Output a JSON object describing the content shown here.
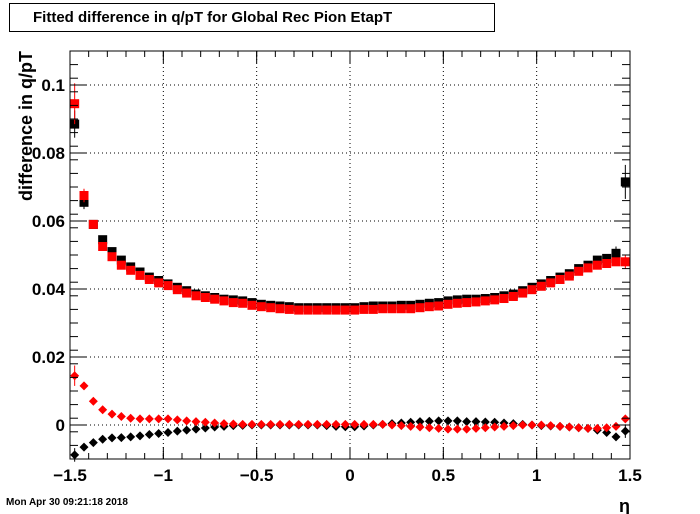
{
  "title": "Fitted difference in q/pT for Global Rec Pion EtapT",
  "timestamp": "Mon Apr 30 09:21:18 2018",
  "colors": {
    "black": "#000000",
    "red": "#ff0000",
    "grid": "#000000"
  },
  "chart_data": {
    "type": "scatter",
    "xlabel": "η",
    "ylabel": "difference in q/pT",
    "xlim": [
      -1.5,
      1.5
    ],
    "ylim": [
      -0.01,
      0.11
    ],
    "grid": true,
    "x_ticks": [
      {
        "v": -1.5,
        "label": "−1.5"
      },
      {
        "v": -1,
        "label": "−1"
      },
      {
        "v": -0.5,
        "label": "−0.5"
      },
      {
        "v": 0,
        "label": "0"
      },
      {
        "v": 0.5,
        "label": "0.5"
      },
      {
        "v": 1,
        "label": "1"
      },
      {
        "v": 1.5,
        "label": "1.5"
      }
    ],
    "y_ticks": [
      {
        "v": 0,
        "label": "0"
      },
      {
        "v": 0.02,
        "label": "0.02"
      },
      {
        "v": 0.04,
        "label": "0.04"
      },
      {
        "v": 0.06,
        "label": "0.06"
      },
      {
        "v": 0.08,
        "label": "0.08"
      },
      {
        "v": 0.1,
        "label": "0.1"
      }
    ],
    "x": [
      -1.475,
      -1.425,
      -1.375,
      -1.325,
      -1.275,
      -1.225,
      -1.175,
      -1.125,
      -1.075,
      -1.025,
      -0.975,
      -0.925,
      -0.875,
      -0.825,
      -0.775,
      -0.725,
      -0.675,
      -0.625,
      -0.575,
      -0.525,
      -0.475,
      -0.425,
      -0.375,
      -0.325,
      -0.275,
      -0.225,
      -0.175,
      -0.125,
      -0.075,
      -0.025,
      0.025,
      0.075,
      0.125,
      0.175,
      0.225,
      0.275,
      0.325,
      0.375,
      0.425,
      0.475,
      0.525,
      0.575,
      0.625,
      0.675,
      0.725,
      0.775,
      0.825,
      0.875,
      0.925,
      0.975,
      1.025,
      1.075,
      1.125,
      1.175,
      1.225,
      1.275,
      1.325,
      1.375,
      1.425,
      1.475
    ],
    "series": [
      {
        "color": "#000000",
        "marker": "square",
        "values": [
          0.0885,
          0.0655,
          0.059,
          0.0545,
          0.051,
          0.0485,
          0.0465,
          0.045,
          0.0435,
          0.0425,
          0.0415,
          0.0405,
          0.0395,
          0.0385,
          0.038,
          0.0375,
          0.037,
          0.0368,
          0.0365,
          0.036,
          0.0355,
          0.0352,
          0.035,
          0.0348,
          0.0345,
          0.0345,
          0.0345,
          0.0345,
          0.0345,
          0.0345,
          0.0345,
          0.0348,
          0.035,
          0.035,
          0.035,
          0.0352,
          0.0352,
          0.0355,
          0.0358,
          0.036,
          0.0365,
          0.0368,
          0.037,
          0.037,
          0.0372,
          0.0375,
          0.038,
          0.0385,
          0.0395,
          0.0405,
          0.0415,
          0.0425,
          0.0435,
          0.0445,
          0.046,
          0.047,
          0.0485,
          0.049,
          0.0505,
          0.0715
        ],
        "errors": [
          0.004,
          0.002,
          0.001,
          0,
          0,
          0,
          0,
          0,
          0,
          0,
          0,
          0,
          0,
          0,
          0,
          0,
          0,
          0,
          0,
          0,
          0,
          0,
          0,
          0,
          0,
          0,
          0,
          0,
          0,
          0,
          0,
          0,
          0,
          0,
          0,
          0,
          0,
          0,
          0,
          0,
          0,
          0,
          0,
          0,
          0,
          0,
          0,
          0,
          0,
          0,
          0,
          0,
          0,
          0,
          0,
          0,
          0,
          0,
          0.002,
          0.005
        ]
      },
      {
        "color": "#ff0000",
        "marker": "square",
        "values": [
          0.0945,
          0.0675,
          0.059,
          0.0525,
          0.0495,
          0.047,
          0.0455,
          0.044,
          0.0428,
          0.0418,
          0.041,
          0.0398,
          0.0388,
          0.038,
          0.0375,
          0.037,
          0.0365,
          0.036,
          0.0358,
          0.0352,
          0.0348,
          0.0345,
          0.0342,
          0.034,
          0.0338,
          0.0338,
          0.0338,
          0.0338,
          0.0338,
          0.0338,
          0.0338,
          0.034,
          0.034,
          0.0342,
          0.0342,
          0.0342,
          0.0342,
          0.0345,
          0.0348,
          0.035,
          0.0355,
          0.0358,
          0.036,
          0.0362,
          0.0365,
          0.0368,
          0.0372,
          0.0378,
          0.0388,
          0.0398,
          0.0408,
          0.0418,
          0.0428,
          0.0438,
          0.0452,
          0.0462,
          0.047,
          0.0475,
          0.048,
          0.048
        ],
        "errors": [
          0.006,
          0.002,
          0.001,
          0,
          0,
          0,
          0,
          0,
          0,
          0,
          0,
          0,
          0,
          0,
          0,
          0,
          0,
          0,
          0,
          0,
          0,
          0,
          0,
          0,
          0,
          0,
          0,
          0,
          0,
          0,
          0,
          0,
          0,
          0,
          0,
          0,
          0,
          0,
          0,
          0,
          0,
          0,
          0,
          0,
          0,
          0,
          0,
          0,
          0,
          0,
          0,
          0,
          0,
          0,
          0,
          0,
          0,
          0,
          0,
          0.002
        ]
      },
      {
        "color": "#000000",
        "marker": "diamond",
        "values": [
          -0.0088,
          -0.0065,
          -0.0052,
          -0.0042,
          -0.0038,
          -0.0037,
          -0.0035,
          -0.0032,
          -0.0028,
          -0.0025,
          -0.0022,
          -0.0018,
          -0.0015,
          -0.0012,
          -0.0009,
          -0.0006,
          -0.0004,
          -0.0002,
          -0.0001,
          0,
          0,
          0,
          0,
          0,
          0,
          0,
          0,
          -0.0002,
          -0.0004,
          -0.0005,
          -0.0005,
          -0.0003,
          0,
          0.0002,
          0.0004,
          0.0006,
          0.0008,
          0.001,
          0.0011,
          0.0012,
          0.0012,
          0.0012,
          0.001,
          0.001,
          0.0009,
          0.0008,
          0.0006,
          0.0004,
          0.0002,
          0,
          -0.0002,
          -0.0003,
          -0.0004,
          -0.0006,
          -0.0008,
          -0.001,
          -0.0015,
          -0.0022,
          -0.0035,
          -0.0018
        ],
        "errors": [
          0.002,
          0.001,
          0,
          0,
          0,
          0,
          0,
          0,
          0,
          0,
          0,
          0,
          0,
          0,
          0,
          0,
          0,
          0,
          0,
          0,
          0,
          0,
          0,
          0,
          0,
          0,
          0,
          0,
          0,
          0,
          0,
          0,
          0,
          0,
          0,
          0,
          0,
          0,
          0,
          0,
          0,
          0,
          0,
          0,
          0,
          0,
          0,
          0,
          0,
          0,
          0,
          0,
          0,
          0,
          0,
          0,
          0,
          0,
          0.001,
          0.002
        ]
      },
      {
        "color": "#ff0000",
        "marker": "diamond",
        "values": [
          0.0145,
          0.0115,
          0.007,
          0.0045,
          0.0032,
          0.0025,
          0.002,
          0.0018,
          0.0018,
          0.0018,
          0.0018,
          0.0015,
          0.0012,
          0.001,
          0.0008,
          0.0006,
          0.0004,
          0.0003,
          0.0002,
          0.0002,
          0.0002,
          0.0002,
          0.0002,
          0.0002,
          0.0002,
          0.0002,
          0.0002,
          0.0002,
          0.0002,
          0.0002,
          0.0002,
          0.0002,
          0.0002,
          0.0002,
          0.0,
          -0.0002,
          -0.0004,
          -0.0006,
          -0.0008,
          -0.001,
          -0.0012,
          -0.0012,
          -0.0012,
          -0.001,
          -0.0008,
          -0.0006,
          -0.0004,
          -0.0002,
          0,
          0,
          0,
          -0.0002,
          -0.0004,
          -0.0006,
          -0.0008,
          -0.001,
          -0.001,
          -0.0008,
          -0.0004,
          0.0018
        ],
        "errors": [
          0.003,
          0.001,
          0,
          0,
          0,
          0,
          0,
          0,
          0,
          0,
          0,
          0,
          0,
          0,
          0,
          0,
          0,
          0,
          0,
          0,
          0,
          0,
          0,
          0,
          0,
          0,
          0,
          0,
          0,
          0,
          0,
          0,
          0,
          0,
          0,
          0,
          0,
          0,
          0,
          0,
          0,
          0,
          0,
          0,
          0,
          0,
          0,
          0,
          0,
          0,
          0,
          0,
          0,
          0,
          0,
          0,
          0,
          0,
          0,
          0.001
        ]
      }
    ]
  }
}
